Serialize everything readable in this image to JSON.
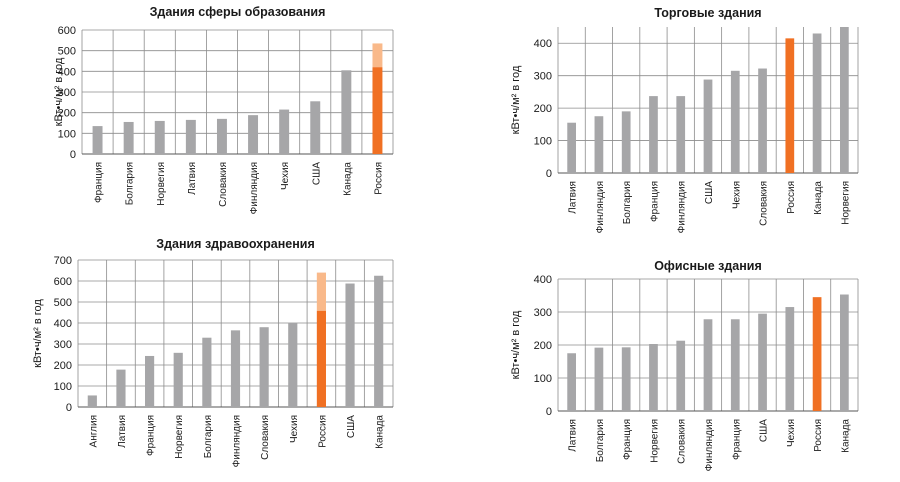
{
  "chart_data": [
    {
      "type": "bar",
      "title": "Здания сферы образования",
      "ylabel": "кВт•ч/м² в год",
      "xlabel": "",
      "ylim": [
        0,
        600
      ],
      "yticks": [
        0,
        100,
        200,
        300,
        400,
        500,
        600
      ],
      "grid": true,
      "categories": [
        "Франция",
        "Болгария",
        "Норвегия",
        "Латвия",
        "Словакия",
        "Финляндия",
        "Чехия",
        "США",
        "Канада",
        "Россия"
      ],
      "values": [
        135,
        155,
        160,
        165,
        170,
        188,
        215,
        255,
        405,
        420
      ],
      "highlight_category": "Россия",
      "highlight_range_top": 535,
      "colors": {
        "bar": "#a6a6a8",
        "highlight": "#f07023",
        "range": "#f9b98a",
        "grid": "#8c8c8c"
      }
    },
    {
      "type": "bar",
      "title": "Торговые здания",
      "ylabel": "кВт•ч/м² в год",
      "xlabel": "",
      "ylim": [
        0,
        450
      ],
      "yticks": [
        0,
        100,
        200,
        300,
        400
      ],
      "grid": true,
      "categories": [
        "Латвия",
        "Финляндия",
        "Болгария",
        "Франция",
        "Финляндия",
        "США",
        "Чехия",
        "Словакия",
        "Россия",
        "Канада",
        "Норвегия"
      ],
      "values": [
        155,
        175,
        190,
        237,
        237,
        288,
        315,
        322,
        415,
        430,
        450
      ],
      "highlight_category": "Россия",
      "colors": {
        "bar": "#a6a6a8",
        "highlight": "#f07023",
        "grid": "#8c8c8c"
      }
    },
    {
      "type": "bar",
      "title": "Здания здравоохранения",
      "ylabel": "кВт•ч/м² в год",
      "xlabel": "",
      "ylim": [
        0,
        700
      ],
      "yticks": [
        0,
        100,
        200,
        300,
        400,
        500,
        600,
        700
      ],
      "grid": true,
      "categories": [
        "Англия",
        "Латвия",
        "Франция",
        "Норвегия",
        "Болгария",
        "Финляндия",
        "Словакия",
        "Чехия",
        "Россия",
        "США",
        "Канада"
      ],
      "values": [
        55,
        178,
        243,
        258,
        330,
        365,
        380,
        400,
        458,
        588,
        625
      ],
      "highlight_category": "Россия",
      "highlight_range_top": 640,
      "colors": {
        "bar": "#a6a6a8",
        "highlight": "#f07023",
        "range": "#f9b98a",
        "grid": "#8c8c8c"
      }
    },
    {
      "type": "bar",
      "title": "Офисные здания",
      "ylabel": "кВт•ч/м² в год",
      "xlabel": "",
      "ylim": [
        0,
        400
      ],
      "yticks": [
        0,
        100,
        200,
        300,
        400
      ],
      "grid": true,
      "categories": [
        "Латвия",
        "Болгария",
        "Франция",
        "Норвегия",
        "Словакия",
        "Финляндия",
        "Франция",
        "США",
        "Чехия",
        "Россия",
        "Канада"
      ],
      "values": [
        175,
        192,
        193,
        203,
        213,
        278,
        278,
        295,
        315,
        345,
        353
      ],
      "highlight_category": "Россия",
      "colors": {
        "bar": "#a6a6a8",
        "highlight": "#f07023",
        "grid": "#8c8c8c"
      }
    }
  ]
}
